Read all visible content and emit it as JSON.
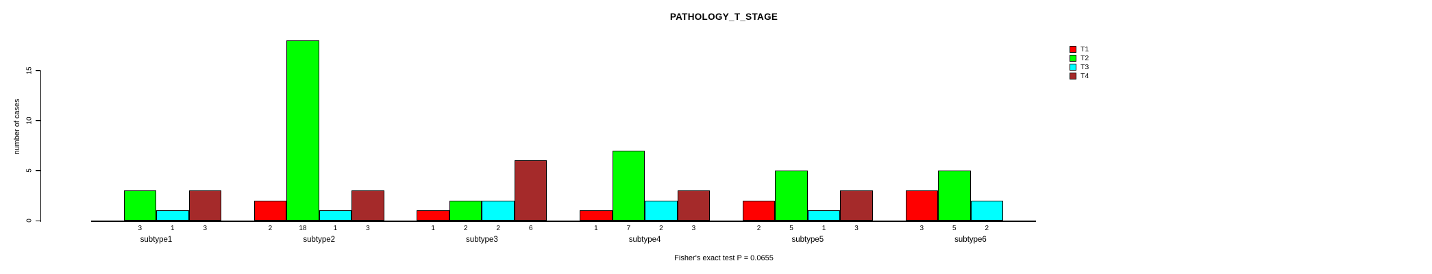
{
  "title": "PATHOLOGY_T_STAGE",
  "footer": "Fisher's exact test P = 0.0655",
  "chart_data": {
    "type": "bar",
    "title": "PATHOLOGY_T_STAGE",
    "xlabel": "",
    "ylabel": "number of cases",
    "categories": [
      "subtype1",
      "subtype2",
      "subtype3",
      "subtype4",
      "subtype5",
      "subtype6"
    ],
    "series": [
      {
        "name": "T1",
        "color": "#FF0000",
        "values": [
          0,
          2,
          1,
          1,
          2,
          3
        ]
      },
      {
        "name": "T2",
        "color": "#00FF00",
        "values": [
          3,
          18,
          2,
          7,
          5,
          5
        ]
      },
      {
        "name": "T3",
        "color": "#00FFFF",
        "values": [
          1,
          1,
          2,
          2,
          1,
          2
        ]
      },
      {
        "name": "T4",
        "color": "#A52A2A",
        "values": [
          3,
          3,
          6,
          3,
          3,
          0
        ]
      }
    ],
    "yticks": [
      0,
      5,
      10,
      15
    ],
    "ylim": [
      0,
      18
    ],
    "grid": false,
    "legend_position": "top-right",
    "bar_value_labels_shown": true,
    "zero_value_labels_hidden": true,
    "annotation": "Fisher's exact test P = 0.0655",
    "axis_color": "#000000",
    "bar_border_color": "#000000",
    "background_color": "#FFFFFF"
  }
}
